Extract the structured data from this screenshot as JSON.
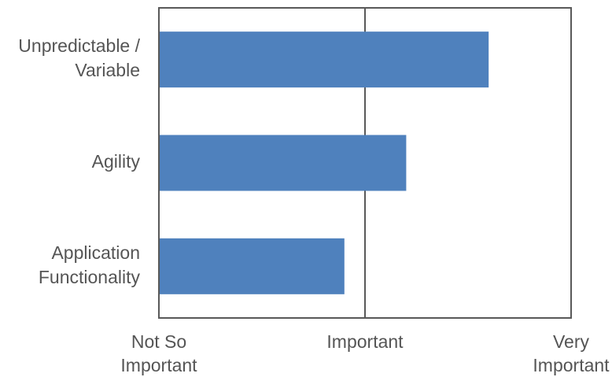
{
  "chart_data": {
    "type": "bar",
    "orientation": "horizontal",
    "categories": [
      [
        "Unpredictable /",
        "Variable"
      ],
      [
        "Agility"
      ],
      [
        "Application",
        "Functionality"
      ]
    ],
    "values": [
      1.6,
      1.2,
      0.9
    ],
    "xlim": [
      0,
      2
    ],
    "x_ticks": [
      {
        "value": 0,
        "label": [
          "Not So",
          "Important"
        ]
      },
      {
        "value": 1,
        "label": [
          "Important"
        ]
      },
      {
        "value": 2,
        "label": [
          "Very",
          "Important"
        ]
      }
    ],
    "title": "",
    "xlabel": "",
    "ylabel": "",
    "bar_color": "#4f81bd",
    "frame_color": "#595959",
    "text_color": "#555555",
    "grid": "vertical line at Important"
  }
}
